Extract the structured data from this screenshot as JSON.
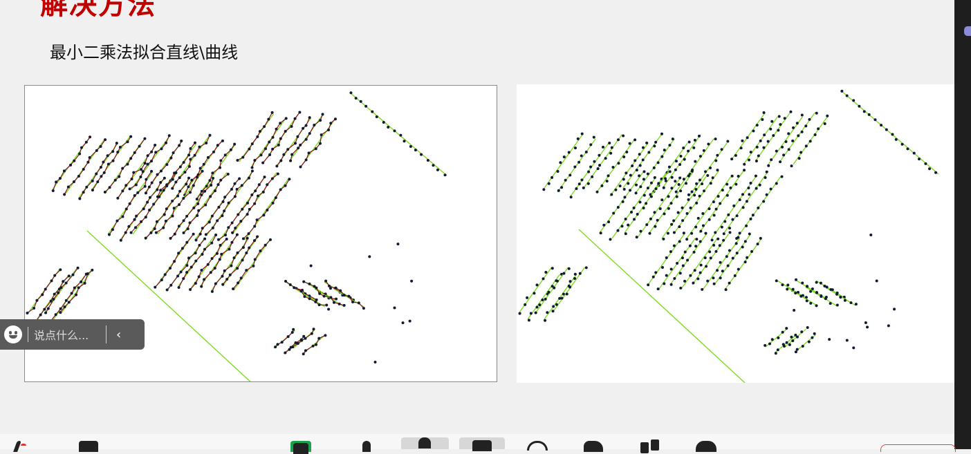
{
  "slide": {
    "heading": "解决方法",
    "subtitle": "最小二乘法拟合直线\\曲线"
  },
  "chat": {
    "placeholder": "说点什么...",
    "collapse_glyph": "‹"
  },
  "colors": {
    "heading": "#c00000",
    "fit_line": "#7ddc1f",
    "fit_curve": "#8a0f1e",
    "points": "#111a33",
    "chat_bar": "#5a5a5a"
  },
  "toolbar": {
    "icons": [
      "mic-muted-icon",
      "camera-off-icon",
      "share-screen-icon",
      "participants-icon",
      "members-icon",
      "chat-icon",
      "record-icon",
      "raise-hand-icon",
      "apps-icon",
      "settings-icon"
    ]
  }
}
